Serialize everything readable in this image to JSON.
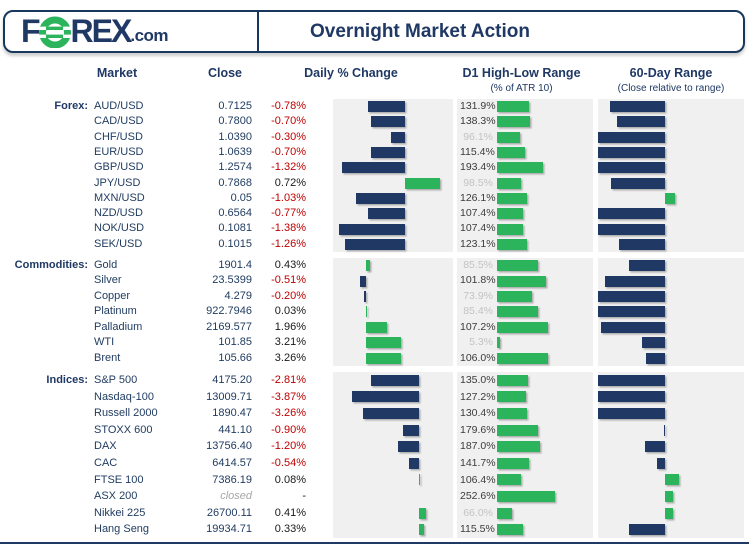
{
  "header": {
    "logo": {
      "f": "F",
      "rex": "REX",
      "suffix": ".com"
    },
    "title": "Overnight Market Action"
  },
  "columns": {
    "market": "Market",
    "close": "Close",
    "daily": "Daily % Change",
    "d1": "D1 High-Low Range",
    "d1_sub": "(% of ATR 10)",
    "range60": "60-Day Range",
    "range60_sub": "(Close relative to range)"
  },
  "colors": {
    "navy": "#1F3864",
    "green": "#2CB45C",
    "red": "#C00000",
    "panel": "#F0F0F0",
    "value_dark": "#3C3C3C",
    "value_dim": "#C3C3C3",
    "closed": "#A6A6A6",
    "border": "#17375E",
    "pos_text": "#1A1A1A"
  },
  "chart_data": [
    {
      "section": "Forex",
      "type": "bar",
      "daily_xlim": [
        -1.5,
        1.0
      ],
      "d1_xlim": [
        0,
        400
      ],
      "range60_axis_pct": 50,
      "rows": [
        {
          "market": "AUD/USD",
          "close": "0.7125",
          "daily_pct": -0.78,
          "d1_atr_pct": 131.9,
          "range60_pct": 9
        },
        {
          "market": "CAD/USD",
          "close": "0.7800",
          "daily_pct": -0.7,
          "d1_atr_pct": 138.3,
          "range60_pct": 14
        },
        {
          "market": "CHF/USD",
          "close": "1.0390",
          "daily_pct": -0.3,
          "d1_atr_pct": 96.1,
          "range60_pct": 0
        },
        {
          "market": "EUR/USD",
          "close": "1.0639",
          "daily_pct": -0.7,
          "d1_atr_pct": 115.4,
          "range60_pct": 0
        },
        {
          "market": "GBP/USD",
          "close": "1.2574",
          "daily_pct": -1.32,
          "d1_atr_pct": 193.4,
          "range60_pct": 0
        },
        {
          "market": "JPY/USD",
          "close": "0.7868",
          "daily_pct": 0.72,
          "d1_atr_pct": 98.5,
          "range60_pct": 10
        },
        {
          "market": "MXN/USD",
          "close": "0.05",
          "daily_pct": -1.03,
          "d1_atr_pct": 126.1,
          "range60_pct": 56
        },
        {
          "market": "NZD/USD",
          "close": "0.6564",
          "daily_pct": -0.77,
          "d1_atr_pct": 107.4,
          "range60_pct": 0
        },
        {
          "market": "NOK/USD",
          "close": "0.1081",
          "daily_pct": -1.38,
          "d1_atr_pct": 107.4,
          "range60_pct": 0
        },
        {
          "market": "SEK/USD",
          "close": "0.1015",
          "daily_pct": -1.26,
          "d1_atr_pct": 123.1,
          "range60_pct": 16
        }
      ]
    },
    {
      "section": "Commodities",
      "type": "bar",
      "daily_xlim": [
        -3.0,
        8.0
      ],
      "d1_xlim": [
        0,
        200
      ],
      "range60_axis_pct": 50,
      "rows": [
        {
          "market": "Gold",
          "close": "1901.4",
          "daily_pct": 0.43,
          "d1_atr_pct": 85.5,
          "range60_pct": 23
        },
        {
          "market": "Silver",
          "close": "23.5399",
          "daily_pct": -0.51,
          "d1_atr_pct": 101.8,
          "range60_pct": 5
        },
        {
          "market": "Copper",
          "close": "4.279",
          "daily_pct": -0.2,
          "d1_atr_pct": 73.9,
          "range60_pct": 0
        },
        {
          "market": "Platinum",
          "close": "922.7946",
          "daily_pct": 0.03,
          "d1_atr_pct": 85.4,
          "range60_pct": 0
        },
        {
          "market": "Palladium",
          "close": "2169.577",
          "daily_pct": 1.96,
          "d1_atr_pct": 107.2,
          "range60_pct": 2
        },
        {
          "market": "WTI",
          "close": "101.85",
          "daily_pct": 3.21,
          "d1_atr_pct": 5.3,
          "range60_pct": 33
        },
        {
          "market": "Brent",
          "close": "105.66",
          "daily_pct": 3.26,
          "d1_atr_pct": 106.0,
          "range60_pct": 36
        }
      ]
    },
    {
      "section": "Indices",
      "type": "bar",
      "daily_xlim": [
        -5.0,
        2.0
      ],
      "d1_xlim": [
        0,
        420
      ],
      "range60_axis_pct": 50,
      "rows": [
        {
          "market": "S&P 500",
          "close": "4175.20",
          "daily_pct": -2.81,
          "d1_atr_pct": 135.0,
          "range60_pct": 0
        },
        {
          "market": "Nasdaq-100",
          "close": "13009.71",
          "daily_pct": -3.87,
          "d1_atr_pct": 127.2,
          "range60_pct": 0
        },
        {
          "market": "Russell 2000",
          "close": "1890.47",
          "daily_pct": -3.26,
          "d1_atr_pct": 130.4,
          "range60_pct": 0
        },
        {
          "market": "STOXX 600",
          "close": "441.10",
          "daily_pct": -0.9,
          "d1_atr_pct": 179.6,
          "range60_pct": 49
        },
        {
          "market": "DAX",
          "close": "13756.40",
          "daily_pct": -1.2,
          "d1_atr_pct": 187.0,
          "range60_pct": 35
        },
        {
          "market": "CAC",
          "close": "6414.57",
          "daily_pct": -0.54,
          "d1_atr_pct": 141.7,
          "range60_pct": 44
        },
        {
          "market": "FTSE 100",
          "close": "7386.19",
          "daily_pct": 0.08,
          "d1_atr_pct": 106.4,
          "range60_pct": 59
        },
        {
          "market": "ASX 200",
          "close": "closed",
          "is_closed": true,
          "daily_pct": null,
          "d1_atr_pct": 252.6,
          "range60_pct": 55
        },
        {
          "market": "Nikkei 225",
          "close": "26700.11",
          "daily_pct": 0.41,
          "d1_atr_pct": 66.0,
          "range60_pct": 55
        },
        {
          "market": "Hang Seng",
          "close": "19934.71",
          "daily_pct": 0.33,
          "d1_atr_pct": 115.5,
          "range60_pct": 23
        }
      ]
    }
  ]
}
